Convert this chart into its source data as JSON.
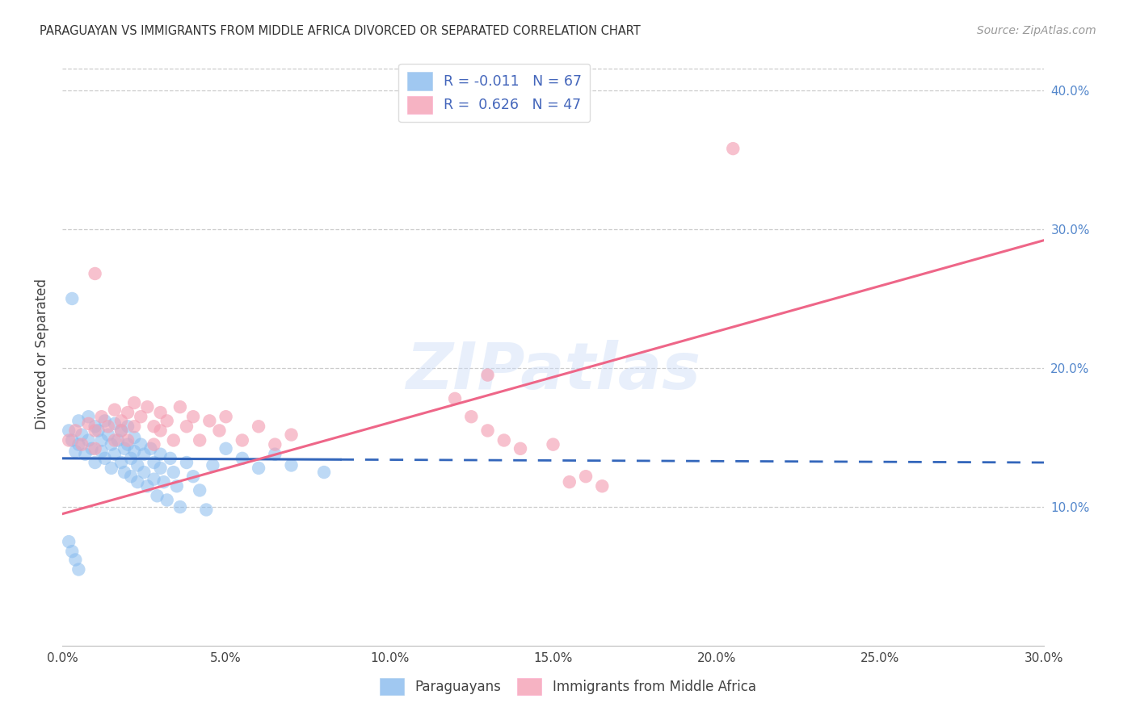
{
  "title": "PARAGUAYAN VS IMMIGRANTS FROM MIDDLE AFRICA DIVORCED OR SEPARATED CORRELATION CHART",
  "source": "Source: ZipAtlas.com",
  "ylabel": "Divorced or Separated",
  "xmin": 0.0,
  "xmax": 0.3,
  "ymin": 0.0,
  "ymax": 0.42,
  "x_ticks": [
    0.0,
    0.05,
    0.1,
    0.15,
    0.2,
    0.25,
    0.3
  ],
  "y_ticks": [
    0.1,
    0.2,
    0.3,
    0.4
  ],
  "y_tick_labels": [
    "10.0%",
    "20.0%",
    "30.0%",
    "40.0%"
  ],
  "x_tick_labels": [
    "0.0%",
    "5.0%",
    "10.0%",
    "15.0%",
    "20.0%",
    "25.0%",
    "30.0%"
  ],
  "blue_color": "#88bbee",
  "pink_color": "#f4a0b4",
  "blue_line_color": "#3366bb",
  "pink_line_color": "#ee6688",
  "watermark": "ZIPatlas",
  "blue_line": {
    "x0": 0.0,
    "y0": 0.135,
    "x1": 0.3,
    "y1": 0.132,
    "solid_end": 0.085
  },
  "pink_line": {
    "x0": 0.0,
    "y0": 0.095,
    "x1": 0.3,
    "y1": 0.292,
    "solid_end": 0.3
  },
  "blue_scatter": [
    [
      0.002,
      0.155
    ],
    [
      0.003,
      0.148
    ],
    [
      0.004,
      0.14
    ],
    [
      0.005,
      0.162
    ],
    [
      0.005,
      0.145
    ],
    [
      0.006,
      0.152
    ],
    [
      0.007,
      0.138
    ],
    [
      0.008,
      0.165
    ],
    [
      0.008,
      0.148
    ],
    [
      0.009,
      0.142
    ],
    [
      0.01,
      0.158
    ],
    [
      0.01,
      0.132
    ],
    [
      0.011,
      0.155
    ],
    [
      0.012,
      0.148
    ],
    [
      0.012,
      0.14
    ],
    [
      0.013,
      0.162
    ],
    [
      0.013,
      0.135
    ],
    [
      0.014,
      0.152
    ],
    [
      0.015,
      0.145
    ],
    [
      0.015,
      0.128
    ],
    [
      0.016,
      0.16
    ],
    [
      0.016,
      0.138
    ],
    [
      0.017,
      0.148
    ],
    [
      0.018,
      0.155
    ],
    [
      0.018,
      0.132
    ],
    [
      0.019,
      0.142
    ],
    [
      0.019,
      0.125
    ],
    [
      0.02,
      0.158
    ],
    [
      0.02,
      0.145
    ],
    [
      0.021,
      0.135
    ],
    [
      0.021,
      0.122
    ],
    [
      0.022,
      0.15
    ],
    [
      0.022,
      0.14
    ],
    [
      0.023,
      0.13
    ],
    [
      0.023,
      0.118
    ],
    [
      0.024,
      0.145
    ],
    [
      0.025,
      0.138
    ],
    [
      0.025,
      0.125
    ],
    [
      0.026,
      0.115
    ],
    [
      0.027,
      0.142
    ],
    [
      0.028,
      0.132
    ],
    [
      0.028,
      0.12
    ],
    [
      0.029,
      0.108
    ],
    [
      0.03,
      0.138
    ],
    [
      0.03,
      0.128
    ],
    [
      0.031,
      0.118
    ],
    [
      0.032,
      0.105
    ],
    [
      0.033,
      0.135
    ],
    [
      0.034,
      0.125
    ],
    [
      0.035,
      0.115
    ],
    [
      0.036,
      0.1
    ],
    [
      0.038,
      0.132
    ],
    [
      0.04,
      0.122
    ],
    [
      0.042,
      0.112
    ],
    [
      0.044,
      0.098
    ],
    [
      0.046,
      0.13
    ],
    [
      0.05,
      0.142
    ],
    [
      0.055,
      0.135
    ],
    [
      0.06,
      0.128
    ],
    [
      0.065,
      0.138
    ],
    [
      0.07,
      0.13
    ],
    [
      0.08,
      0.125
    ],
    [
      0.003,
      0.25
    ],
    [
      0.002,
      0.075
    ],
    [
      0.003,
      0.068
    ],
    [
      0.004,
      0.062
    ],
    [
      0.005,
      0.055
    ]
  ],
  "pink_scatter": [
    [
      0.002,
      0.148
    ],
    [
      0.004,
      0.155
    ],
    [
      0.006,
      0.145
    ],
    [
      0.008,
      0.16
    ],
    [
      0.01,
      0.155
    ],
    [
      0.01,
      0.142
    ],
    [
      0.012,
      0.165
    ],
    [
      0.014,
      0.158
    ],
    [
      0.016,
      0.17
    ],
    [
      0.016,
      0.148
    ],
    [
      0.018,
      0.162
    ],
    [
      0.018,
      0.155
    ],
    [
      0.02,
      0.168
    ],
    [
      0.02,
      0.148
    ],
    [
      0.022,
      0.175
    ],
    [
      0.022,
      0.158
    ],
    [
      0.024,
      0.165
    ],
    [
      0.026,
      0.172
    ],
    [
      0.028,
      0.158
    ],
    [
      0.028,
      0.145
    ],
    [
      0.03,
      0.168
    ],
    [
      0.03,
      0.155
    ],
    [
      0.032,
      0.162
    ],
    [
      0.034,
      0.148
    ],
    [
      0.036,
      0.172
    ],
    [
      0.038,
      0.158
    ],
    [
      0.04,
      0.165
    ],
    [
      0.042,
      0.148
    ],
    [
      0.045,
      0.162
    ],
    [
      0.048,
      0.155
    ],
    [
      0.05,
      0.165
    ],
    [
      0.055,
      0.148
    ],
    [
      0.06,
      0.158
    ],
    [
      0.065,
      0.145
    ],
    [
      0.07,
      0.152
    ],
    [
      0.01,
      0.268
    ],
    [
      0.12,
      0.178
    ],
    [
      0.125,
      0.165
    ],
    [
      0.13,
      0.155
    ],
    [
      0.135,
      0.148
    ],
    [
      0.14,
      0.142
    ],
    [
      0.15,
      0.145
    ],
    [
      0.155,
      0.118
    ],
    [
      0.16,
      0.122
    ],
    [
      0.165,
      0.115
    ],
    [
      0.205,
      0.358
    ],
    [
      0.13,
      0.195
    ]
  ]
}
